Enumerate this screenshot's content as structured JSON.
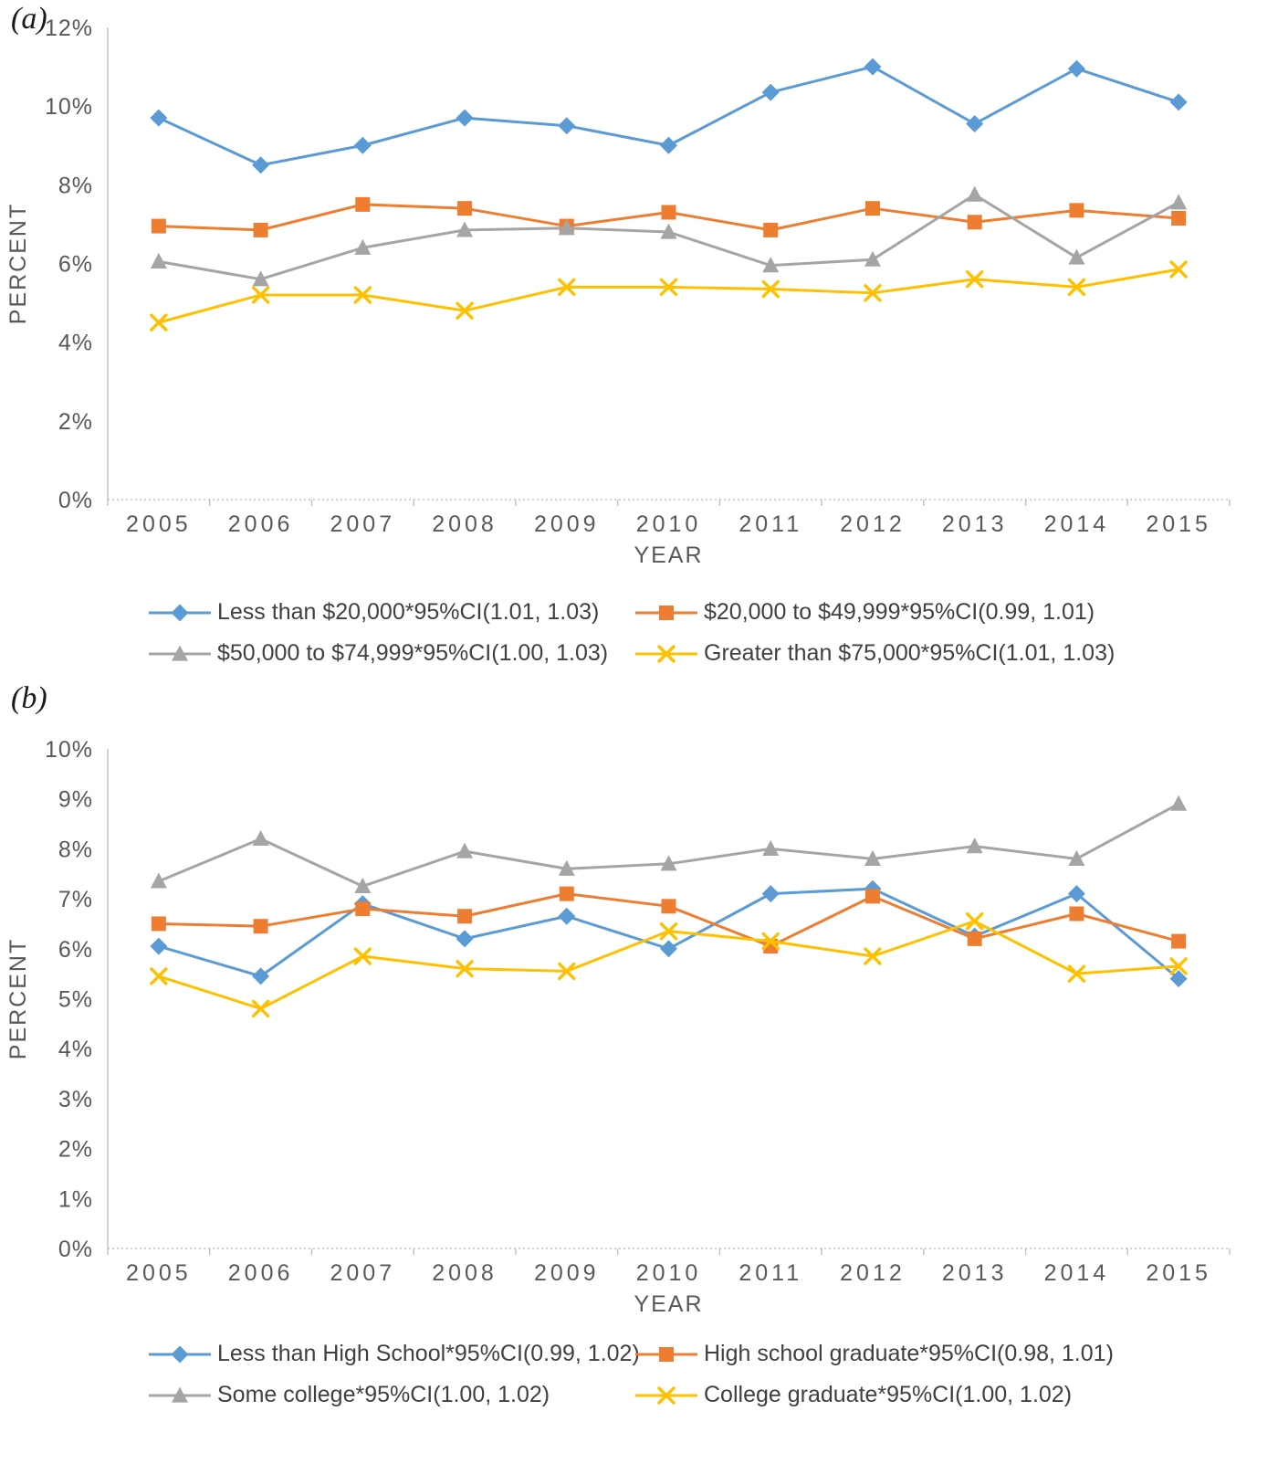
{
  "panels": [
    {
      "label": "(a)"
    },
    {
      "label": "(b)"
    }
  ],
  "chart_data": [
    {
      "type": "line",
      "title": "",
      "xlabel": "YEAR",
      "ylabel": "PERCENT",
      "x": [
        2005,
        2006,
        2007,
        2008,
        2009,
        2010,
        2011,
        2012,
        2013,
        2014,
        2015
      ],
      "ylim": [
        0,
        12
      ],
      "ytick_step": 2,
      "ytick_suffix": "%",
      "grid": false,
      "legend_position": "bottom",
      "series": [
        {
          "name": "Less than $20,000*95%CI(1.01, 1.03)",
          "color": "#5B9BD5",
          "marker": "diamond",
          "values": [
            9.7,
            8.5,
            9.0,
            9.7,
            9.5,
            9.0,
            10.35,
            11.0,
            9.55,
            10.95,
            10.1
          ]
        },
        {
          "name": "$20,000 to $49,999*95%CI(0.99, 1.01)",
          "color": "#ED7D31",
          "marker": "square",
          "values": [
            6.95,
            6.85,
            7.5,
            7.4,
            6.95,
            7.3,
            6.85,
            7.4,
            7.05,
            7.35,
            7.15
          ]
        },
        {
          "name": "$50,000 to $74,999*95%CI(1.00, 1.03)",
          "color": "#A5A5A5",
          "marker": "triangle",
          "values": [
            6.05,
            5.6,
            6.4,
            6.85,
            6.9,
            6.8,
            5.95,
            6.1,
            7.75,
            6.15,
            7.55
          ]
        },
        {
          "name": "Greater than $75,000*95%CI(1.01, 1.03)",
          "color": "#FFC000",
          "marker": "x",
          "values": [
            4.5,
            5.2,
            5.2,
            4.8,
            5.4,
            5.4,
            5.35,
            5.25,
            5.6,
            5.4,
            5.85
          ]
        }
      ]
    },
    {
      "type": "line",
      "title": "",
      "xlabel": "YEAR",
      "ylabel": "PERCENT",
      "x": [
        2005,
        2006,
        2007,
        2008,
        2009,
        2010,
        2011,
        2012,
        2013,
        2014,
        2015
      ],
      "ylim": [
        0,
        10
      ],
      "ytick_step": 1,
      "ytick_suffix": "%",
      "grid": false,
      "legend_position": "bottom",
      "series": [
        {
          "name": "Less than High School*95%CI(0.99, 1.02)",
          "color": "#5B9BD5",
          "marker": "diamond",
          "values": [
            6.05,
            5.45,
            6.9,
            6.2,
            6.65,
            6.0,
            7.1,
            7.2,
            6.25,
            7.1,
            5.4
          ]
        },
        {
          "name": "High school graduate*95%CI(0.98, 1.01)",
          "color": "#ED7D31",
          "marker": "square",
          "values": [
            6.5,
            6.45,
            6.8,
            6.65,
            7.1,
            6.85,
            6.05,
            7.05,
            6.2,
            6.7,
            6.15
          ]
        },
        {
          "name": "Some college*95%CI(1.00, 1.02)",
          "color": "#A5A5A5",
          "marker": "triangle",
          "values": [
            7.35,
            8.2,
            7.25,
            7.95,
            7.6,
            7.7,
            8.0,
            7.8,
            8.05,
            7.8,
            8.9
          ]
        },
        {
          "name": "College graduate*95%CI(1.00, 1.02)",
          "color": "#FFC000",
          "marker": "x",
          "values": [
            5.45,
            4.8,
            5.85,
            5.6,
            5.55,
            6.35,
            6.15,
            5.85,
            6.55,
            5.5,
            5.65
          ]
        }
      ]
    }
  ]
}
